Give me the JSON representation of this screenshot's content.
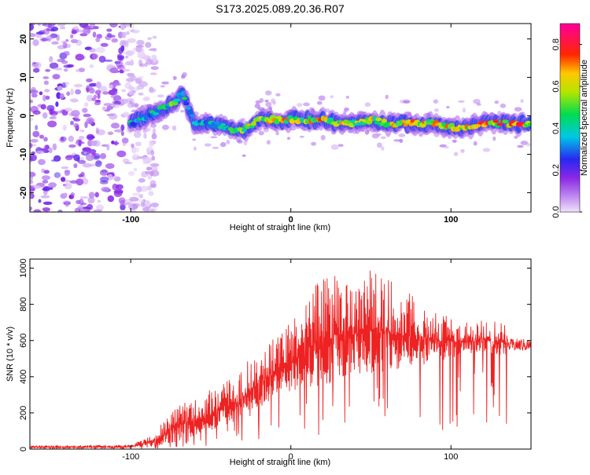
{
  "title": "S173.2025.089.20.36.R07",
  "chart_data": [
    {
      "type": "heatmap",
      "xlabel": "Height of straight line (km)",
      "ylabel": "Frequency (Hz)",
      "xlim": [
        -163,
        150
      ],
      "ylim": [
        -25,
        24
      ],
      "xticks": [
        -100,
        0,
        100
      ],
      "yticks": [
        -20,
        -10,
        0,
        10,
        20
      ],
      "xtick_labels": [
        "-100",
        "0",
        "100"
      ],
      "ytick_labels": [
        "-20",
        "-10",
        "0",
        "10",
        "20"
      ],
      "colorbar": {
        "label": "Normalized spectral amplitude",
        "range": [
          0,
          0.9
        ],
        "ticks": [
          0,
          0.2,
          0.4,
          0.6,
          0.8
        ],
        "tick_labels": [
          "0.0",
          "0.2",
          "0.4",
          "0.6",
          "0.8"
        ]
      },
      "noise_region_x": [
        -163,
        -85
      ],
      "ridge": {
        "x": [
          -100,
          -90,
          -80,
          -72,
          -68,
          -60,
          -50,
          -40,
          -30,
          -20,
          -10,
          0,
          10,
          20,
          30,
          40,
          50,
          60,
          70,
          80,
          90,
          100,
          110,
          120,
          130,
          140,
          150
        ],
        "freq": [
          -2,
          0,
          2,
          4,
          6,
          -2,
          -2,
          -3,
          -4,
          -1,
          -1,
          -1,
          -1,
          -1,
          -2,
          -2,
          -1,
          -2,
          -2,
          -2,
          -2,
          -3,
          -3,
          -2,
          -2,
          -2,
          -2
        ],
        "amplitude": [
          0.45,
          0.5,
          0.55,
          0.6,
          0.5,
          0.45,
          0.45,
          0.45,
          0.7,
          0.75,
          0.8,
          0.75,
          0.75,
          0.8,
          0.75,
          0.7,
          0.75,
          0.7,
          0.75,
          0.8,
          0.75,
          0.75,
          0.8,
          0.85,
          0.85,
          0.9,
          0.9
        ]
      }
    },
    {
      "type": "line",
      "xlabel": "Height of straight line (km)",
      "ylabel": "SNR (10 * v/v)",
      "xlim": [
        -163,
        150
      ],
      "ylim": [
        0,
        1050
      ],
      "xticks": [
        -100,
        0,
        100
      ],
      "yticks": [
        0,
        200,
        400,
        600,
        800,
        1000
      ],
      "xtick_labels": [
        "-100",
        "0",
        "100"
      ],
      "ytick_labels": [
        "0",
        "200",
        "400",
        "600",
        "800",
        "1000"
      ],
      "color": "#ee2222",
      "envelope": {
        "x": [
          -163,
          -100,
          -85,
          -75,
          -65,
          -55,
          -45,
          -35,
          -25,
          -15,
          -5,
          0,
          10,
          20,
          30,
          40,
          50,
          60,
          70,
          80,
          90,
          100,
          110,
          120,
          130,
          140,
          150
        ],
        "low": [
          5,
          5,
          10,
          30,
          60,
          80,
          100,
          150,
          180,
          250,
          300,
          320,
          330,
          350,
          380,
          400,
          420,
          430,
          440,
          460,
          480,
          500,
          520,
          540,
          520,
          520,
          530
        ],
        "high": [
          20,
          25,
          100,
          220,
          280,
          300,
          380,
          400,
          520,
          600,
          680,
          720,
          820,
          980,
          960,
          980,
          1000,
          950,
          900,
          820,
          780,
          720,
          700,
          720,
          700,
          680,
          660
        ]
      }
    }
  ]
}
